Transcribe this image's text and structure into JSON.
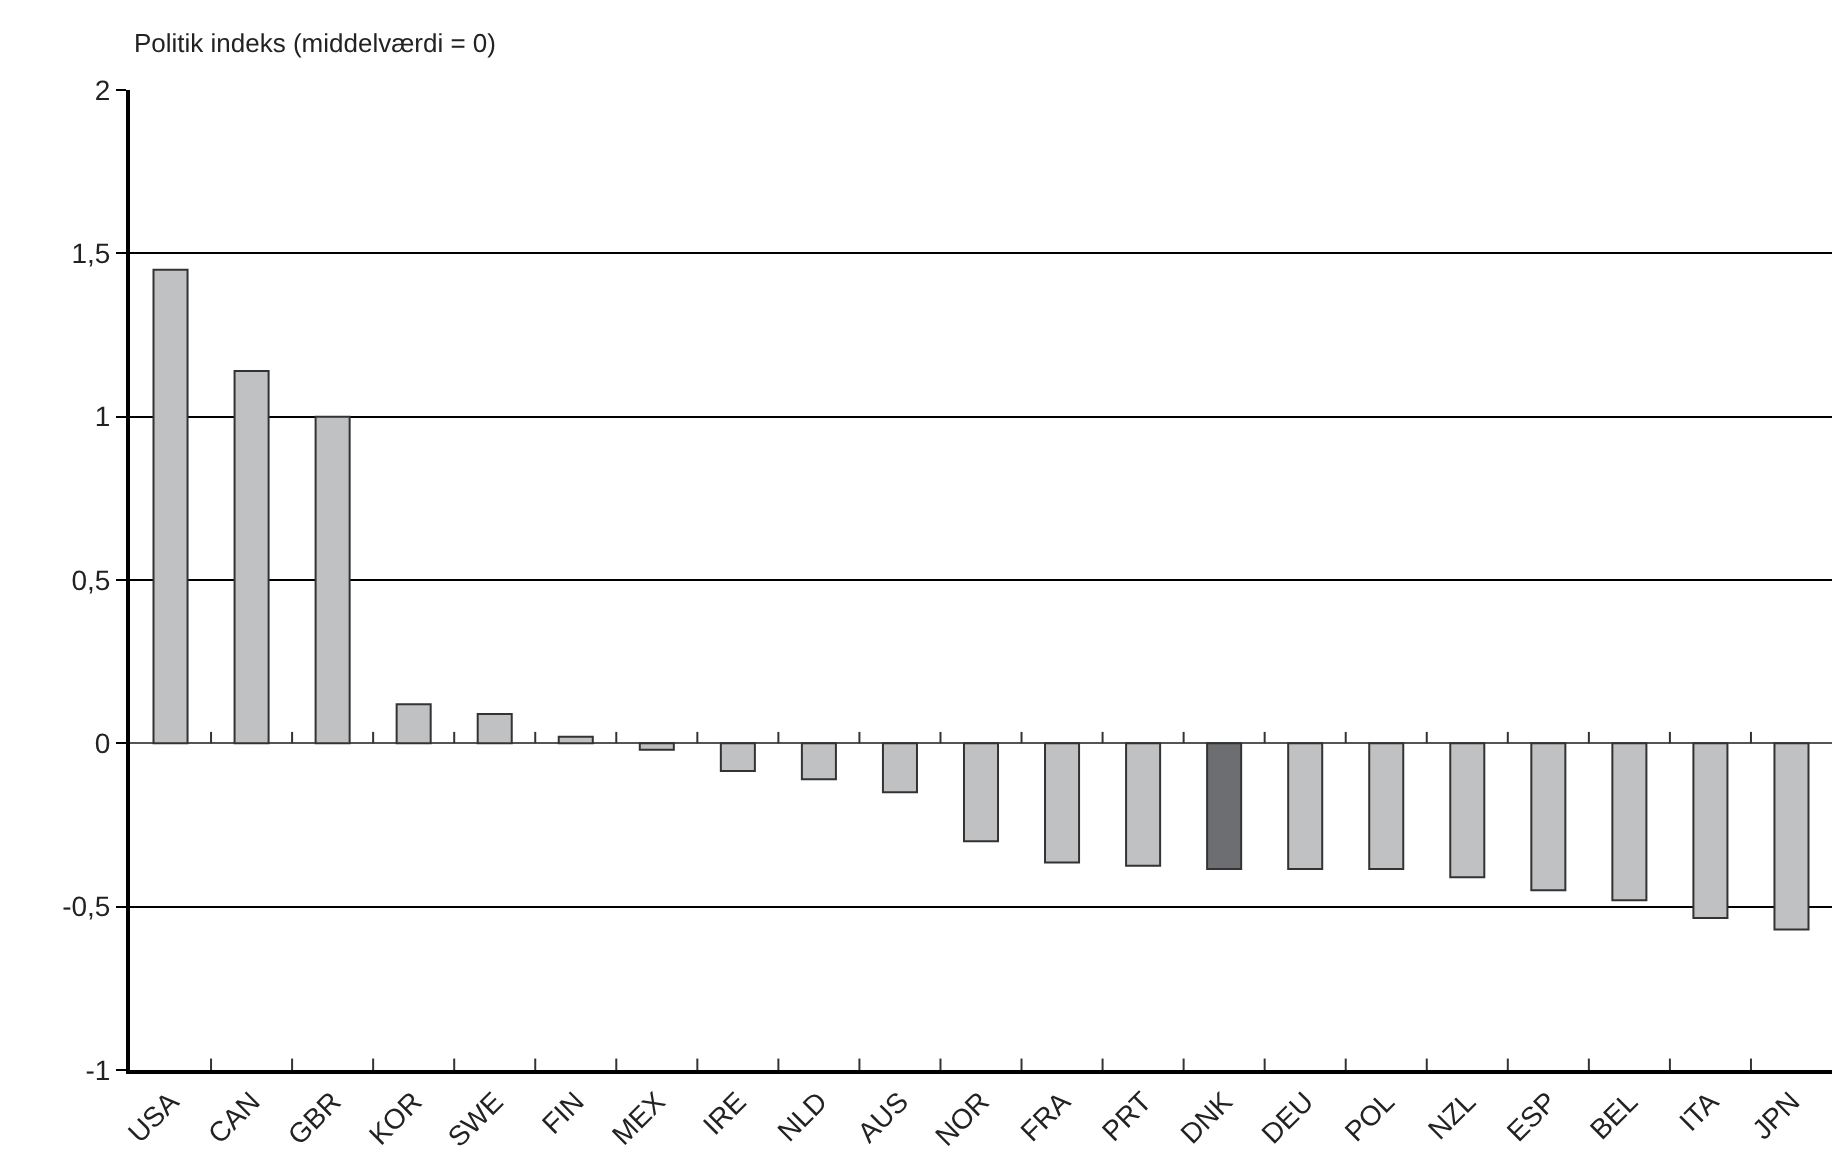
{
  "chart_data": {
    "type": "bar",
    "ylabel": "Politik indeks (middelværdi = 0)",
    "categories": [
      "USA",
      "CAN",
      "GBR",
      "KOR",
      "SWE",
      "FIN",
      "MEX",
      "IRE",
      "NLD",
      "AUS",
      "NOR",
      "FRA",
      "PRT",
      "DNK",
      "DEU",
      "POL",
      "NZL",
      "ESP",
      "BEL",
      "ITA",
      "JPN"
    ],
    "values": [
      1.45,
      1.14,
      1.0,
      0.12,
      0.09,
      0.02,
      -0.02,
      -0.085,
      -0.11,
      -0.15,
      -0.3,
      -0.365,
      -0.375,
      -0.385,
      -0.385,
      -0.385,
      -0.41,
      -0.45,
      -0.48,
      -0.535,
      -0.57
    ],
    "colors": [
      "#c0c1c3",
      "#c0c1c3",
      "#c0c1c3",
      "#c0c1c3",
      "#c0c1c3",
      "#c0c1c3",
      "#c0c1c3",
      "#c0c1c3",
      "#c0c1c3",
      "#c0c1c3",
      "#c0c1c3",
      "#c0c1c3",
      "#c0c1c3",
      "#6d6e71",
      "#c0c1c3",
      "#c0c1c3",
      "#c0c1c3",
      "#c0c1c3",
      "#c0c1c3",
      "#c0c1c3",
      "#c0c1c3"
    ],
    "ylim": [
      -1,
      2
    ],
    "yticks": [
      {
        "value": -1,
        "label": "-1"
      },
      {
        "value": -0.5,
        "label": "-0,5"
      },
      0,
      {
        "value": 0.5,
        "label": "0,5"
      },
      1,
      {
        "value": 1.5,
        "label": "1,5"
      },
      2
    ],
    "grid": "y"
  }
}
